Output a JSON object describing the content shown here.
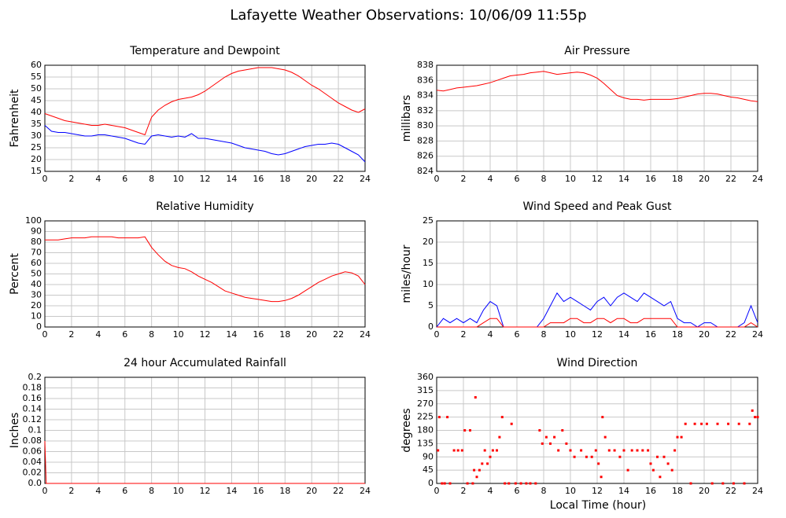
{
  "title": "Lafayette Weather Observations: 10/06/09 11:55p",
  "xlabel": "Local Time (hour)",
  "chart_data": [
    {
      "type": "line",
      "title": "Temperature and Dewpoint",
      "ylabel": "Fahrenheit",
      "x": [
        0,
        0.5,
        1,
        1.5,
        2,
        2.5,
        3,
        3.5,
        4,
        4.5,
        5,
        5.5,
        6,
        6.5,
        7,
        7.5,
        8,
        8.5,
        9,
        9.5,
        10,
        10.5,
        11,
        11.5,
        12,
        12.5,
        13,
        13.5,
        14,
        14.5,
        15,
        15.5,
        16,
        16.5,
        17,
        17.5,
        18,
        18.5,
        19,
        19.5,
        20,
        20.5,
        21,
        21.5,
        22,
        22.5,
        23,
        23.5,
        24
      ],
      "xlim": [
        0,
        24
      ],
      "xticks": [
        0,
        2,
        4,
        6,
        8,
        10,
        12,
        14,
        16,
        18,
        20,
        22,
        24
      ],
      "ylim": [
        15,
        60
      ],
      "yticks": [
        15,
        20,
        25,
        30,
        35,
        40,
        45,
        50,
        55,
        60
      ],
      "grid": true,
      "series": [
        {
          "color": "#ff0000",
          "values": [
            39.5,
            38.5,
            37.5,
            36.5,
            36,
            35.5,
            35,
            34.5,
            34.5,
            35,
            34.5,
            34,
            33.5,
            32.5,
            31.5,
            30.5,
            38,
            41,
            43,
            44.5,
            45.5,
            46,
            46.5,
            47.5,
            49,
            51,
            53,
            55,
            56.5,
            57.5,
            58,
            58.5,
            59,
            59,
            59,
            58.5,
            58,
            57,
            55.5,
            53.5,
            51.5,
            50,
            48,
            46,
            44,
            42.5,
            41,
            40,
            41.5
          ]
        },
        {
          "color": "#0000ff",
          "values": [
            34.5,
            32,
            31.5,
            31.5,
            31,
            30.5,
            30,
            30,
            30.5,
            30.5,
            30,
            29.5,
            29,
            28,
            27,
            26.5,
            30,
            30.5,
            30,
            29.5,
            30,
            29.5,
            31,
            29,
            29,
            28.5,
            28,
            27.5,
            27,
            26,
            25,
            24.5,
            24,
            23.5,
            22.5,
            22,
            22.5,
            23.5,
            24.5,
            25.5,
            26,
            26.5,
            26.5,
            27,
            26.5,
            25,
            23.5,
            22,
            19
          ]
        }
      ]
    },
    {
      "type": "line",
      "title": "Air Pressure",
      "ylabel": "millibars",
      "x": [
        0,
        0.5,
        1,
        1.5,
        2,
        2.5,
        3,
        3.5,
        4,
        4.5,
        5,
        5.5,
        6,
        6.5,
        7,
        7.5,
        8,
        8.5,
        9,
        9.5,
        10,
        10.5,
        11,
        11.5,
        12,
        12.5,
        13,
        13.5,
        14,
        14.5,
        15,
        15.5,
        16,
        16.5,
        17,
        17.5,
        18,
        18.5,
        19,
        19.5,
        20,
        20.5,
        21,
        21.5,
        22,
        22.5,
        23,
        23.5,
        24
      ],
      "xlim": [
        0,
        24
      ],
      "xticks": [
        0,
        2,
        4,
        6,
        8,
        10,
        12,
        14,
        16,
        18,
        20,
        22,
        24
      ],
      "ylim": [
        824,
        838
      ],
      "yticks": [
        824,
        826,
        828,
        830,
        832,
        834,
        836,
        838
      ],
      "grid": true,
      "series": [
        {
          "color": "#ff0000",
          "values": [
            834.7,
            834.6,
            834.8,
            835,
            835.1,
            835.2,
            835.3,
            835.5,
            835.7,
            836,
            836.3,
            836.6,
            836.7,
            836.8,
            837,
            837.1,
            837.2,
            837,
            836.8,
            836.9,
            837,
            837.1,
            837,
            836.7,
            836.3,
            835.6,
            834.8,
            834,
            833.7,
            833.5,
            833.5,
            833.4,
            833.5,
            833.5,
            833.5,
            833.5,
            833.6,
            833.8,
            834,
            834.2,
            834.3,
            834.3,
            834.2,
            834,
            833.8,
            833.7,
            833.5,
            833.3,
            833.2
          ]
        }
      ]
    },
    {
      "type": "line",
      "title": "Relative Humidity",
      "ylabel": "Percent",
      "x": [
        0,
        0.5,
        1,
        1.5,
        2,
        2.5,
        3,
        3.5,
        4,
        4.5,
        5,
        5.5,
        6,
        6.5,
        7,
        7.5,
        8,
        8.5,
        9,
        9.5,
        10,
        10.5,
        11,
        11.5,
        12,
        12.5,
        13,
        13.5,
        14,
        14.5,
        15,
        15.5,
        16,
        16.5,
        17,
        17.5,
        18,
        18.5,
        19,
        19.5,
        20,
        20.5,
        21,
        21.5,
        22,
        22.5,
        23,
        23.5,
        24
      ],
      "xlim": [
        0,
        24
      ],
      "xticks": [
        0,
        2,
        4,
        6,
        8,
        10,
        12,
        14,
        16,
        18,
        20,
        22,
        24
      ],
      "ylim": [
        0,
        100
      ],
      "yticks": [
        0,
        10,
        20,
        30,
        40,
        50,
        60,
        70,
        80,
        90,
        100
      ],
      "grid": true,
      "series": [
        {
          "color": "#ff0000",
          "values": [
            82,
            82,
            82,
            83,
            84,
            84,
            84,
            85,
            85,
            85,
            85,
            84,
            84,
            84,
            84,
            85,
            75,
            68,
            62,
            58,
            56,
            55,
            52,
            48,
            45,
            42,
            38,
            34,
            32,
            30,
            28,
            27,
            26,
            25,
            24,
            24,
            25,
            27,
            30,
            34,
            38,
            42,
            45,
            48,
            50,
            52,
            51,
            48,
            40
          ]
        }
      ]
    },
    {
      "type": "line",
      "title": "Wind Speed and Peak Gust",
      "ylabel": "miles/hour",
      "x": [
        0,
        0.5,
        1,
        1.5,
        2,
        2.5,
        3,
        3.5,
        4,
        4.5,
        5,
        5.5,
        6,
        6.5,
        7,
        7.5,
        8,
        8.5,
        9,
        9.5,
        10,
        10.5,
        11,
        11.5,
        12,
        12.5,
        13,
        13.5,
        14,
        14.5,
        15,
        15.5,
        16,
        16.5,
        17,
        17.5,
        18,
        18.5,
        19,
        19.5,
        20,
        20.5,
        21,
        21.5,
        22,
        22.5,
        23,
        23.5,
        24
      ],
      "xlim": [
        0,
        24
      ],
      "xticks": [
        0,
        2,
        4,
        6,
        8,
        10,
        12,
        14,
        16,
        18,
        20,
        22,
        24
      ],
      "ylim": [
        0,
        25
      ],
      "yticks": [
        0,
        5,
        10,
        15,
        20,
        25
      ],
      "grid": true,
      "series": [
        {
          "color": "#0000ff",
          "values": [
            0,
            2,
            1,
            2,
            1,
            2,
            1,
            4,
            6,
            5,
            0,
            0,
            0,
            0,
            0,
            0,
            2,
            5,
            8,
            6,
            7,
            6,
            5,
            4,
            6,
            7,
            5,
            7,
            8,
            7,
            6,
            8,
            7,
            6,
            5,
            6,
            2,
            1,
            1,
            0,
            1,
            1,
            0,
            0,
            0,
            0,
            1,
            5,
            1
          ]
        },
        {
          "color": "#ff0000",
          "values": [
            0,
            0,
            0,
            0,
            0,
            0,
            0,
            1,
            2,
            2,
            0,
            0,
            0,
            0,
            0,
            0,
            0,
            1,
            1,
            1,
            2,
            2,
            1,
            1,
            2,
            2,
            1,
            2,
            2,
            1,
            1,
            2,
            2,
            2,
            2,
            2,
            0,
            0,
            0,
            0,
            0,
            0,
            0,
            0,
            0,
            0,
            0,
            1,
            0
          ]
        }
      ]
    },
    {
      "type": "line",
      "title": "24 hour Accumulated Rainfall",
      "ylabel": "Inches",
      "x": [
        0,
        0.1,
        24
      ],
      "xlim": [
        0,
        24
      ],
      "xticks": [
        0,
        2,
        4,
        6,
        8,
        10,
        12,
        14,
        16,
        18,
        20,
        22,
        24
      ],
      "ylim": [
        0,
        0.2
      ],
      "yticks": [
        {
          "value": 0,
          "label": "0.0"
        },
        0.02,
        0.04,
        0.06,
        0.08,
        0.1,
        0.12,
        0.14,
        0.16,
        0.18,
        0.2
      ],
      "grid": true,
      "series": [
        {
          "color": "#ff0000",
          "values": [
            0.08,
            0,
            0
          ]
        }
      ]
    },
    {
      "type": "scatter",
      "title": "Wind Direction",
      "ylabel": "degrees",
      "x": [
        0.1,
        0.2,
        0.4,
        0.6,
        0.8,
        1,
        1.3,
        1.6,
        1.9,
        2.1,
        2.3,
        2.5,
        2.7,
        2.8,
        2.9,
        3,
        3.2,
        3.4,
        3.6,
        3.8,
        4,
        4.2,
        4.5,
        4.7,
        4.9,
        5.1,
        5.4,
        5.6,
        5.9,
        6.3,
        6.7,
        7,
        7.4,
        7.7,
        7.9,
        8.2,
        8.5,
        8.8,
        9.1,
        9.4,
        9.7,
        10,
        10.3,
        10.8,
        11.2,
        11.6,
        11.9,
        12.1,
        12.3,
        12.4,
        12.6,
        12.9,
        13.3,
        13.7,
        14,
        14.3,
        14.6,
        15,
        15.4,
        15.8,
        16,
        16.2,
        16.5,
        16.7,
        17,
        17.3,
        17.6,
        17.8,
        18,
        18.3,
        18.6,
        19,
        19.3,
        19.8,
        20.2,
        20.6,
        21,
        21.4,
        21.8,
        22.2,
        22.6,
        23,
        23.4,
        23.6,
        23.8,
        24
      ],
      "xlim": [
        0,
        24
      ],
      "xticks": [
        0,
        2,
        4,
        6,
        8,
        10,
        12,
        14,
        16,
        18,
        20,
        22,
        24
      ],
      "ylim": [
        0,
        360
      ],
      "yticks": [
        0,
        45,
        90,
        135,
        180,
        225,
        270,
        315,
        360
      ],
      "grid": true,
      "series": [
        {
          "color": "#ff0000",
          "values": [
            112,
            225,
            0,
            0,
            225,
            0,
            112,
            112,
            112,
            180,
            0,
            180,
            0,
            45,
            292,
            22,
            45,
            67,
            112,
            67,
            90,
            112,
            112,
            157,
            225,
            0,
            0,
            202,
            0,
            0,
            0,
            0,
            0,
            180,
            135,
            157,
            135,
            157,
            112,
            180,
            135,
            112,
            90,
            112,
            90,
            90,
            112,
            67,
            22,
            225,
            157,
            112,
            112,
            90,
            112,
            45,
            112,
            112,
            112,
            112,
            67,
            45,
            90,
            22,
            90,
            67,
            45,
            112,
            157,
            157,
            202,
            0,
            202,
            202,
            202,
            0,
            202,
            0,
            202,
            0,
            202,
            0,
            202,
            247,
            225,
            225
          ]
        }
      ]
    }
  ]
}
